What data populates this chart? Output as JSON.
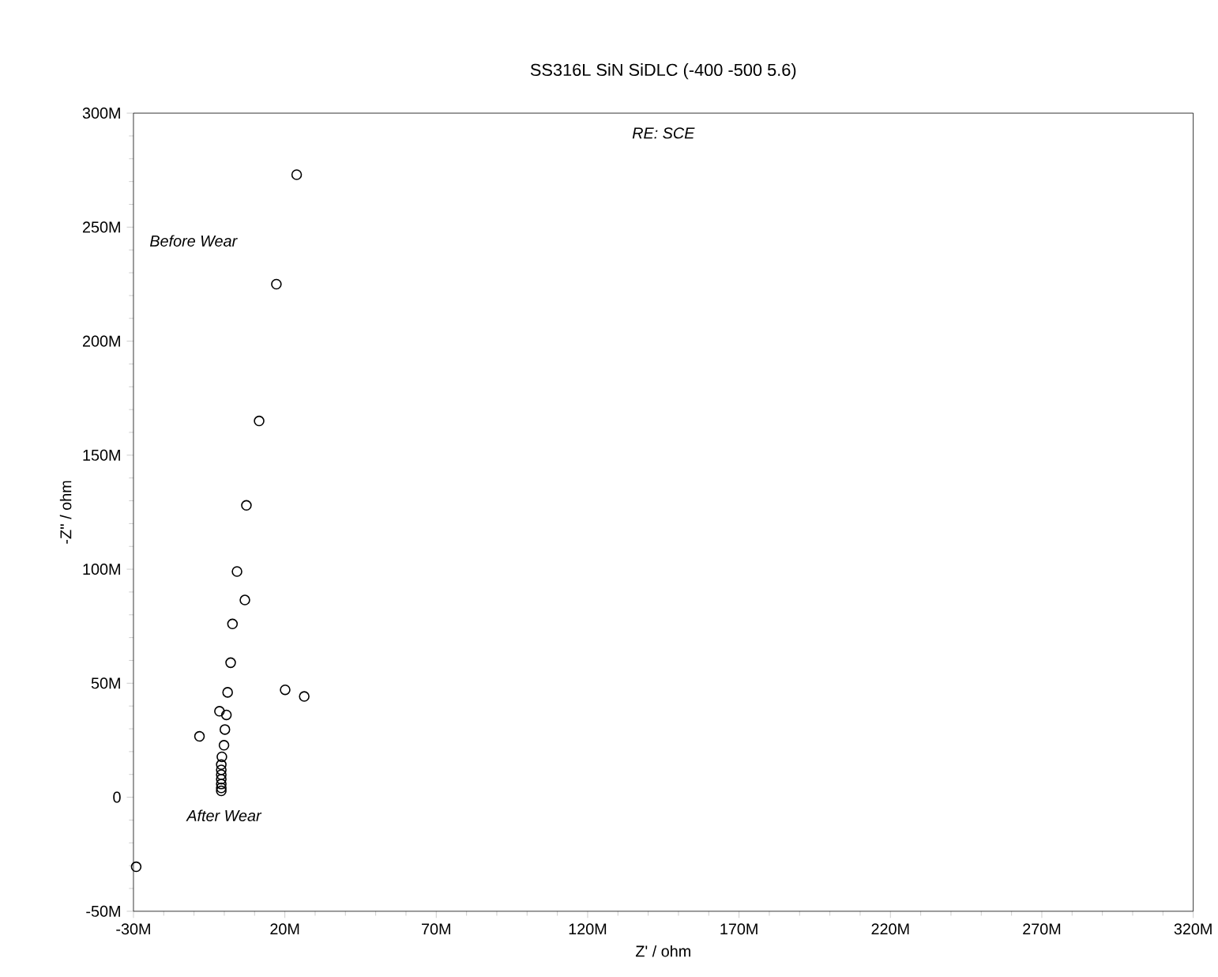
{
  "chart_data": {
    "type": "scatter",
    "title": "SS316L SiN SiDLC (-400 -500 5.6)",
    "xlabel": "Z' / ohm",
    "ylabel": "-Z'' / ohm",
    "annotations": [
      "RE: SCE",
      "Before Wear",
      "After Wear"
    ],
    "marker": "circle",
    "grid": false,
    "xlim": [
      -30,
      320
    ],
    "ylim": [
      -50,
      300
    ],
    "xticks": [
      {
        "value": -30,
        "label": "-30M"
      },
      {
        "value": 20,
        "label": "20M"
      },
      {
        "value": 70,
        "label": "70M"
      },
      {
        "value": 120,
        "label": "120M"
      },
      {
        "value": 170,
        "label": "170M"
      },
      {
        "value": 220,
        "label": "220M"
      },
      {
        "value": 270,
        "label": "270M"
      },
      {
        "value": 320,
        "label": "320M"
      }
    ],
    "yticks": [
      {
        "value": -50,
        "label": "-50M"
      },
      {
        "value": 0,
        "label": "0"
      },
      {
        "value": 50,
        "label": "50M"
      },
      {
        "value": 100,
        "label": "100M"
      },
      {
        "value": 150,
        "label": "150M"
      },
      {
        "value": 200,
        "label": "200M"
      },
      {
        "value": 250,
        "label": "250M"
      },
      {
        "value": 300,
        "label": "300M"
      }
    ],
    "series": [
      {
        "color": "#000000",
        "x": [
          23.9,
          17.2,
          11.5,
          7.3,
          4.2,
          6.8,
          2.7,
          2.1,
          1.1,
          -1.6,
          0.7,
          0.2,
          -8.2,
          -0.1,
          -0.8,
          -1,
          -1,
          -1,
          -1,
          -1,
          -1,
          -1,
          20.1,
          26.4,
          -29.1
        ],
        "values": [
          273,
          225,
          165,
          128,
          99,
          86.5,
          76,
          59,
          46,
          37.7,
          36.1,
          29.7,
          26.7,
          22.8,
          17.7,
          14.3,
          12,
          9.9,
          7.9,
          5.8,
          4.1,
          2.8,
          47.1,
          44.2,
          -30.5
        ]
      }
    ]
  }
}
